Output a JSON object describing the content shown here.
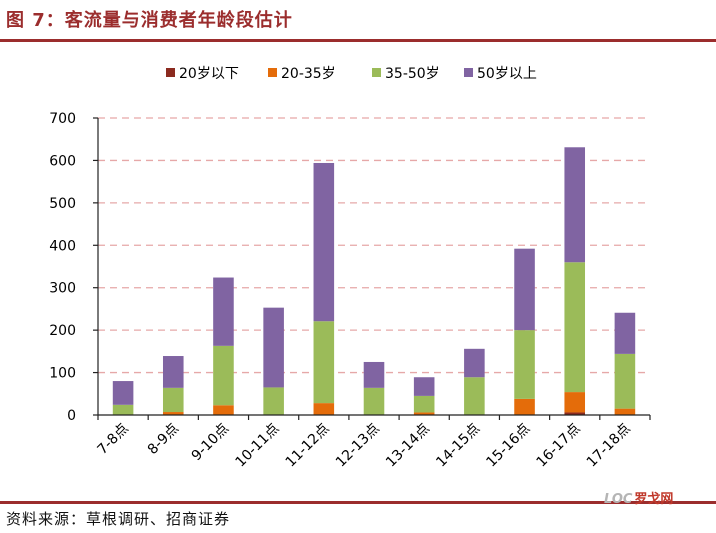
{
  "header": {
    "title": "图 7：客流量与消费者年龄段估计"
  },
  "footer": {
    "source": "资料来源：草根调研、招商证券",
    "watermark_logo": "LOC",
    "watermark_text": "罗戈网"
  },
  "chart_data": {
    "type": "bar",
    "stacked": true,
    "categories": [
      "7-8点",
      "8-9点",
      "9-10点",
      "10-11点",
      "11-12点",
      "12-13点",
      "13-14点",
      "14-15点",
      "15-16点",
      "16-17点",
      "17-18点"
    ],
    "series": [
      {
        "name": "20岁以下",
        "color": "#8b2a1f",
        "values": [
          0,
          0,
          0,
          0,
          0,
          0,
          0,
          0,
          0,
          6,
          0
        ]
      },
      {
        "name": "20-35岁",
        "color": "#e46c0a",
        "values": [
          0,
          7,
          23,
          0,
          28,
          0,
          6,
          0,
          38,
          48,
          15
        ]
      },
      {
        "name": "35-50岁",
        "color": "#9bbb59",
        "values": [
          24,
          57,
          140,
          65,
          193,
          64,
          39,
          89,
          162,
          306,
          129
        ]
      },
      {
        "name": "50岁以上",
        "color": "#8064a2",
        "values": [
          56,
          75,
          161,
          188,
          373,
          61,
          44,
          67,
          192,
          271,
          97
        ]
      }
    ],
    "yticks": [
      0,
      100,
      200,
      300,
      400,
      500,
      600,
      700
    ],
    "ylim": [
      0,
      700
    ],
    "grid": true,
    "legend_position": "top"
  }
}
